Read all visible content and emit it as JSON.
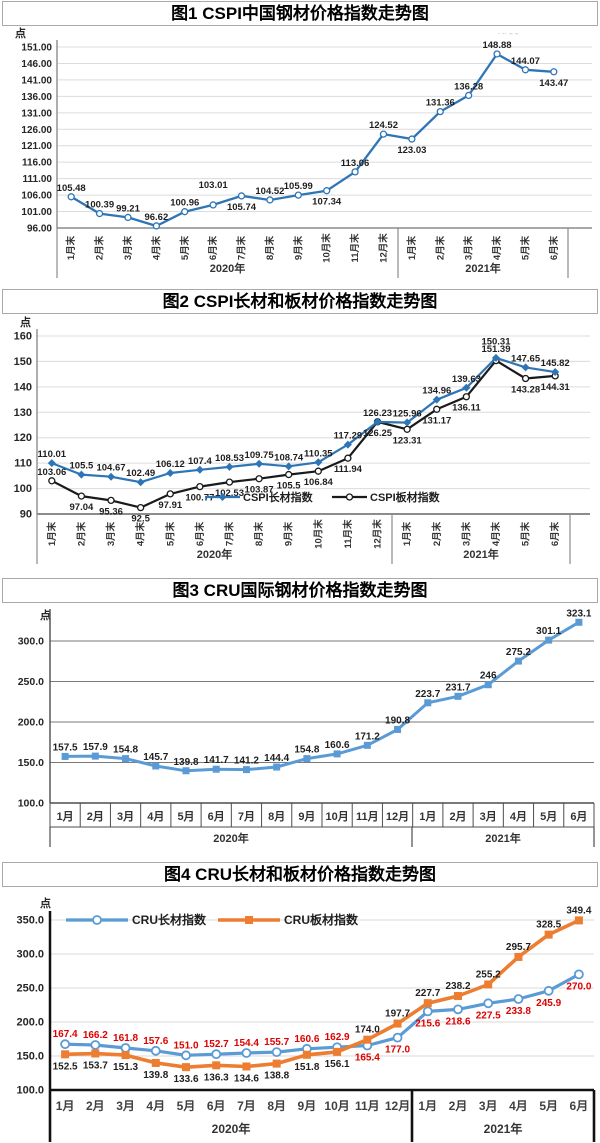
{
  "chart_data": [
    {
      "type": "line",
      "title": "图1 CSPI中国钢材价格指数走势图",
      "unit_label": "点",
      "ylim": [
        96,
        151
      ],
      "y_ticks": [
        "151.00",
        "146.00",
        "141.00",
        "136.00",
        "131.00",
        "126.00",
        "121.00",
        "116.00",
        "111.00",
        "106.00",
        "101.00",
        "96.00"
      ],
      "categories_2020": [
        "1月末",
        "2月末",
        "3月末",
        "4月末",
        "5月末",
        "6月末",
        "7月末",
        "8月末",
        "9月末",
        "10月末",
        "11月末",
        "12月末"
      ],
      "categories_2021": [
        "1月末",
        "2月末",
        "3月末",
        "4月末",
        "5月末",
        "6月末"
      ],
      "year_labels": [
        "2020年",
        "2021年"
      ],
      "grid": true,
      "legend_position": "none",
      "faint_marks": "· ··  – –",
      "series": [
        {
          "color": "#2e75b6",
          "marker": "circle-open",
          "label_color": "#1f1f1f",
          "values": [
            105.48,
            100.39,
            99.21,
            96.62,
            100.96,
            103.01,
            105.74,
            104.52,
            105.99,
            107.34,
            113.06,
            124.52,
            123.03,
            131.36,
            136.28,
            148.88,
            144.07,
            143.47
          ],
          "labels": [
            "105.48",
            "100.39",
            "99.21",
            "96.62",
            "100.96",
            "103.01",
            "105.74",
            "104.52",
            "105.99",
            "107.34",
            "113.06",
            "124.52",
            "123.03",
            "131.36",
            "136.28",
            "148.88",
            "144.07",
            "143.47"
          ],
          "label_sides": [
            "u",
            "u",
            "u",
            "u",
            "u",
            "U",
            "d",
            "u",
            "u",
            "d",
            "u",
            "u",
            "d",
            "u",
            "u",
            "u",
            "u",
            "d"
          ]
        }
      ]
    },
    {
      "type": "line",
      "title": "图2 CSPI长材和板材价格指数走势图",
      "unit_label": "点",
      "ylim": [
        90,
        160
      ],
      "y_ticks": [
        "160",
        "150",
        "140",
        "130",
        "120",
        "110",
        "100",
        "90"
      ],
      "categories_2020": [
        "1月末",
        "2月末",
        "3月末",
        "4月末",
        "5月末",
        "6月末",
        "7月末",
        "8月末",
        "9月末",
        "10月末",
        "11月末",
        "12月末"
      ],
      "categories_2021": [
        "1月末",
        "2月末",
        "3月末",
        "4月末",
        "5月末",
        "6月末"
      ],
      "year_labels": [
        "2020年",
        "2021年"
      ],
      "grid": true,
      "legend_position": "inside-bottom",
      "legend": {
        "items": [
          {
            "label": "CSPI长材指数",
            "color": "#2e75b6",
            "marker": "diamond"
          },
          {
            "label": "CSPI板材指数",
            "color": "#1a1a1a",
            "marker": "circle-open"
          }
        ]
      },
      "series": [
        {
          "name": "CSPI长材指数",
          "color": "#2e75b6",
          "marker": "diamond",
          "label_color": "#1f1f1f",
          "values": [
            110.01,
            105.5,
            104.67,
            102.49,
            106.12,
            107.4,
            108.53,
            109.75,
            108.74,
            110.35,
            117.29,
            126.23,
            125.96,
            134.96,
            139.63,
            151.39,
            147.65,
            145.82
          ],
          "labels": [
            "110.01",
            "105.5",
            "104.67",
            "102.49",
            "106.12",
            "107.4",
            "108.53",
            "109.75",
            "108.74",
            "110.35",
            "117.29",
            "126.23",
            "125.96",
            "134.96",
            "139.63",
            "151.39",
            "147.65",
            "145.82"
          ],
          "label_sides": [
            "u",
            "u",
            "u",
            "u",
            "u",
            "u",
            "u",
            "u",
            "u",
            "u",
            "u",
            "u",
            "u",
            "u",
            "u",
            "u",
            "u",
            "u"
          ]
        },
        {
          "name": "CSPI板材指数",
          "color": "#1a1a1a",
          "marker": "circle-open",
          "label_color": "#1f1f1f",
          "values": [
            103.06,
            97.04,
            95.36,
            92.5,
            97.91,
            100.77,
            102.53,
            103.87,
            105.5,
            106.84,
            111.94,
            126.25,
            123.31,
            131.17,
            136.11,
            150.31,
            143.28,
            144.31
          ],
          "labels": [
            "103.06",
            "97.04",
            "95.36",
            "92.5",
            "97.91",
            "100.77",
            "102.53",
            "103.87",
            "105.5",
            "106.84",
            "111.94",
            "126.25",
            "123.31",
            "131.17",
            "136.11",
            "150.31",
            "143.28",
            "144.31"
          ],
          "label_sides": [
            "u",
            "d",
            "d",
            "d",
            "d",
            "d",
            "d",
            "d",
            "d",
            "d",
            "d",
            "d",
            "d",
            "d",
            "d",
            "U",
            "d",
            "d"
          ]
        }
      ]
    },
    {
      "type": "line",
      "title": "图3 CRU国际钢材价格指数走势图",
      "unit_label": "点",
      "ylim": [
        100,
        330
      ],
      "y_ticks": [
        "300.0",
        "250.0",
        "200.0",
        "150.0",
        "100.0"
      ],
      "categories_2020": [
        "1月",
        "2月",
        "3月",
        "4月",
        "5月",
        "6月",
        "7月",
        "8月",
        "9月",
        "10月",
        "11月",
        "12月"
      ],
      "categories_2021": [
        "1月",
        "2月",
        "3月",
        "4月",
        "5月",
        "6月"
      ],
      "year_labels": [
        "2020年",
        "2021年"
      ],
      "grid": true,
      "legend_position": "none",
      "series": [
        {
          "color": "#5b9bd5",
          "marker": "square",
          "label_color": "#1f1f1f",
          "values": [
            157.5,
            157.9,
            154.8,
            145.7,
            139.8,
            141.7,
            141.2,
            144.4,
            154.8,
            160.6,
            171.2,
            190.8,
            223.7,
            231.7,
            246,
            275.2,
            301.1,
            323.1
          ],
          "labels": [
            "157.5",
            "157.9",
            "154.8",
            "145.7",
            "139.8",
            "141.7",
            "141.2",
            "144.4",
            "154.8",
            "160.6",
            "171.2",
            "190.8",
            "223.7",
            "231.7",
            "246",
            "275.2",
            "301.1",
            "323.1"
          ],
          "label_sides": [
            "u",
            "u",
            "u",
            "u",
            "u",
            "u",
            "u",
            "u",
            "u",
            "u",
            "u",
            "u",
            "u",
            "u",
            "u",
            "u",
            "u",
            "u"
          ]
        }
      ]
    },
    {
      "type": "line",
      "title": "图4 CRU长材和板材价格指数走势图",
      "unit_label": "点",
      "ylim": [
        100,
        355
      ],
      "y_ticks": [
        "350.0",
        "300.0",
        "250.0",
        "200.0",
        "150.0",
        "100.0"
      ],
      "categories_2020": [
        "1月",
        "2月",
        "3月",
        "4月",
        "5月",
        "6月",
        "7月",
        "8月",
        "9月",
        "10月",
        "11月",
        "12月"
      ],
      "categories_2021": [
        "1月",
        "2月",
        "3月",
        "4月",
        "5月",
        "6月"
      ],
      "year_labels": [
        "2020年",
        "2021年"
      ],
      "grid": true,
      "legend_position": "inside-top",
      "legend": {
        "items": [
          {
            "label": "CRU长材指数",
            "color": "#5b9bd5",
            "marker": "circle-open"
          },
          {
            "label": "CRU板材指数",
            "color": "#ed7d31",
            "marker": "square"
          }
        ]
      },
      "series": [
        {
          "name": "CRU长材指数",
          "color": "#5b9bd5",
          "marker": "circle-open",
          "label_color": "#e00000",
          "values": [
            167.4,
            166.2,
            161.8,
            157.6,
            151.0,
            152.7,
            154.4,
            155.7,
            160.6,
            162.9,
            165.4,
            177.0,
            215.6,
            218.6,
            227.5,
            233.8,
            245.9,
            270.0
          ],
          "labels": [
            "167.4",
            "166.2",
            "161.8",
            "157.6",
            "151.0",
            "152.7",
            "154.4",
            "155.7",
            "160.6",
            "162.9",
            "165.4",
            "177.0",
            "215.6",
            "218.6",
            "227.5",
            "233.8",
            "245.9",
            "270.0"
          ],
          "label_sides": [
            "u",
            "u",
            "u",
            "u",
            "u",
            "u",
            "u",
            "u",
            "u",
            "u",
            "d",
            "d",
            "d",
            "d",
            "d",
            "d",
            "d",
            "d"
          ]
        },
        {
          "name": "CRU板材指数",
          "color": "#ed7d31",
          "marker": "square",
          "label_color": "#1f1f1f",
          "values": [
            152.5,
            153.7,
            151.3,
            139.8,
            133.6,
            136.3,
            134.6,
            138.8,
            151.8,
            156.1,
            174.0,
            197.7,
            227.7,
            238.2,
            255.2,
            295.7,
            328.5,
            349.4
          ],
          "labels": [
            "152.5",
            "153.7",
            "151.3",
            "139.8",
            "133.6",
            "136.3",
            "134.6",
            "138.8",
            "151.8",
            "156.1",
            "174.0",
            "197.7",
            "227.7",
            "238.2",
            "255.2",
            "295.7",
            "328.5",
            "349.4"
          ],
          "label_sides": [
            "d",
            "d",
            "d",
            "d",
            "d",
            "d",
            "d",
            "d",
            "d",
            "d",
            "u",
            "u",
            "u",
            "u",
            "u",
            "u",
            "u",
            "u"
          ]
        }
      ]
    }
  ]
}
